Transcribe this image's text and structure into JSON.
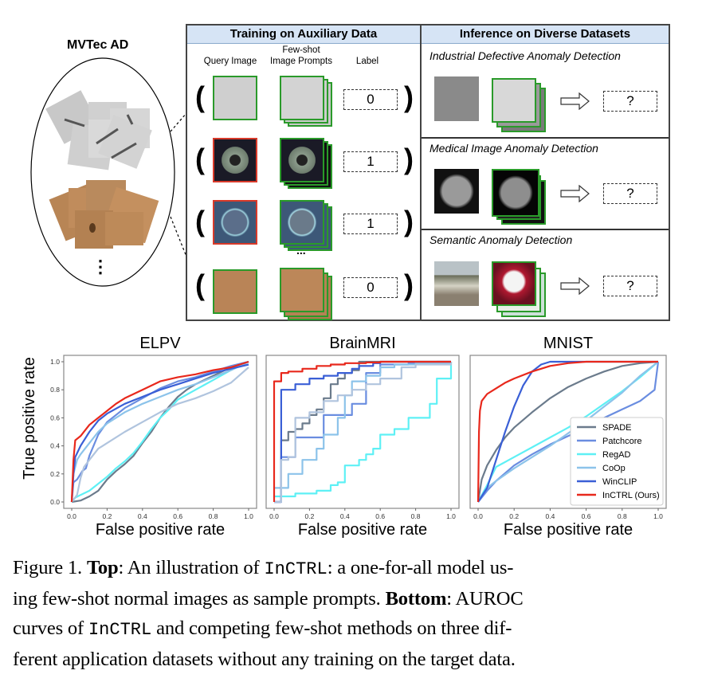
{
  "left_panel": {
    "title": "MVTec AD",
    "ellipsis": "⋮"
  },
  "training": {
    "header": "Training on Auxiliary Data",
    "col_query": "Query Image",
    "col_prompts_line1": "Few-shot",
    "col_prompts_line2": "Image Prompts",
    "col_label": "Label",
    "rows": [
      {
        "label": "0",
        "query_frame": "normal"
      },
      {
        "label": "1",
        "query_frame": "anomaly"
      },
      {
        "label": "1",
        "query_frame": "anomaly"
      },
      {
        "label": "0",
        "query_frame": "normal"
      }
    ],
    "dots": "...",
    "open_paren": "(",
    "close_paren": ")"
  },
  "inference": {
    "header": "Inference on Diverse Datasets",
    "sections": [
      {
        "title": "Industrial Defective Anomaly Detection",
        "output": "?"
      },
      {
        "title": "Medical Image Anomaly Detection",
        "output": "?"
      },
      {
        "title": "Semantic Anomaly Detection",
        "output": "?"
      }
    ]
  },
  "colors": {
    "normal_frame": "#2a9a2a",
    "anomaly_frame": "#d83a2a",
    "header_bg": "#d6e4f5"
  },
  "chart_data": [
    {
      "type": "line",
      "title": "ELPV",
      "xlabel": "False positive rate",
      "ylabel": "True positive rate",
      "xlim": [
        0,
        1
      ],
      "ylim": [
        0,
        1
      ],
      "xticks": [
        "0.0",
        "0.2",
        "0.4",
        "0.6",
        "0.8",
        "1.0"
      ],
      "yticks": [
        "0.0",
        "0.2",
        "0.4",
        "0.6",
        "0.8",
        "1.0"
      ],
      "series": [
        {
          "name": "SPADE",
          "color": "#6b7b8c",
          "x": [
            0,
            0.05,
            0.1,
            0.15,
            0.2,
            0.25,
            0.3,
            0.35,
            0.4,
            0.45,
            0.5,
            0.55,
            0.6,
            0.65,
            0.7,
            0.8,
            0.9,
            1.0
          ],
          "y": [
            0,
            0.01,
            0.04,
            0.08,
            0.16,
            0.22,
            0.27,
            0.33,
            0.42,
            0.5,
            0.6,
            0.68,
            0.75,
            0.8,
            0.84,
            0.9,
            0.96,
            1.0
          ]
        },
        {
          "name": "Patchcore",
          "color": "#6a8de0",
          "x": [
            0,
            0.01,
            0.03,
            0.06,
            0.08,
            0.1,
            0.15,
            0.2,
            0.3,
            0.4,
            0.5,
            0.6,
            0.7,
            0.8,
            0.9,
            1.0
          ],
          "y": [
            0,
            0.14,
            0.16,
            0.22,
            0.24,
            0.33,
            0.48,
            0.57,
            0.67,
            0.74,
            0.81,
            0.86,
            0.89,
            0.93,
            0.97,
            1.0
          ]
        },
        {
          "name": "RegAD",
          "color": "#5ef0f5",
          "x": [
            0,
            0.02,
            0.05,
            0.1,
            0.15,
            0.2,
            0.25,
            0.3,
            0.35,
            0.4,
            0.45,
            0.5,
            0.55,
            0.6,
            0.7,
            0.8,
            0.9,
            1.0
          ],
          "y": [
            0,
            0.03,
            0.05,
            0.08,
            0.13,
            0.18,
            0.24,
            0.29,
            0.35,
            0.43,
            0.52,
            0.6,
            0.66,
            0.73,
            0.8,
            0.87,
            0.94,
            1.0
          ]
        },
        {
          "name": "CoOp",
          "color": "#8cc3ea",
          "x": [
            0,
            0.01,
            0.03,
            0.05,
            0.1,
            0.15,
            0.2,
            0.3,
            0.4,
            0.5,
            0.6,
            0.7,
            0.8,
            0.9,
            1.0
          ],
          "y": [
            0,
            0.2,
            0.3,
            0.34,
            0.42,
            0.5,
            0.56,
            0.64,
            0.7,
            0.75,
            0.8,
            0.84,
            0.89,
            0.94,
            1.0
          ]
        },
        {
          "name": "WinCLIP",
          "color": "#3a5fd6",
          "x": [
            0,
            0.01,
            0.02,
            0.05,
            0.1,
            0.15,
            0.2,
            0.3,
            0.4,
            0.5,
            0.6,
            0.7,
            0.8,
            0.9,
            1.0
          ],
          "y": [
            0,
            0.2,
            0.32,
            0.4,
            0.5,
            0.58,
            0.63,
            0.7,
            0.75,
            0.8,
            0.84,
            0.88,
            0.92,
            0.95,
            0.98
          ]
        },
        {
          "name": "InCTRL (Ours)",
          "color": "#e8281c",
          "x": [
            0,
            0.01,
            0.02,
            0.05,
            0.1,
            0.15,
            0.2,
            0.25,
            0.3,
            0.4,
            0.5,
            0.6,
            0.7,
            0.8,
            0.9,
            1.0
          ],
          "y": [
            0,
            0.3,
            0.44,
            0.47,
            0.55,
            0.6,
            0.65,
            0.7,
            0.74,
            0.8,
            0.86,
            0.89,
            0.91,
            0.94,
            0.96,
            1.0
          ]
        },
        {
          "name": "Extra-lightblue",
          "color": "#b0c4de",
          "legend": false,
          "x": [
            0,
            0.03,
            0.05,
            0.07,
            0.1,
            0.15,
            0.2,
            0.3,
            0.4,
            0.5,
            0.6,
            0.7,
            0.8,
            0.9,
            1.0
          ],
          "y": [
            0,
            0.05,
            0.17,
            0.25,
            0.3,
            0.38,
            0.42,
            0.5,
            0.57,
            0.64,
            0.7,
            0.74,
            0.79,
            0.85,
            0.96
          ]
        }
      ]
    },
    {
      "type": "line",
      "title": "BrainMRI",
      "xlabel": "False positive rate",
      "xlim": [
        0,
        1
      ],
      "ylim": [
        0,
        1
      ],
      "xticks": [
        "0.0",
        "0.2",
        "0.4",
        "0.6",
        "0.8",
        "1.0"
      ],
      "step": true,
      "series": [
        {
          "name": "SPADE",
          "color": "#6b7b8c",
          "x": [
            0,
            0.04,
            0.04,
            0.08,
            0.12,
            0.16,
            0.2,
            0.24,
            0.28,
            0.32,
            0.36,
            0.4,
            0.44,
            0.48,
            0.48,
            1.0
          ],
          "y": [
            0,
            0.2,
            0.44,
            0.5,
            0.52,
            0.56,
            0.62,
            0.66,
            0.74,
            0.84,
            0.88,
            0.92,
            0.94,
            0.98,
            1.0,
            1.0
          ]
        },
        {
          "name": "Patchcore",
          "color": "#6a8de0",
          "x": [
            0,
            0.04,
            0.04,
            0.12,
            0.12,
            0.28,
            0.28,
            0.44,
            0.52,
            0.52,
            0.6,
            0.76,
            0.92,
            1.0
          ],
          "y": [
            0,
            0.16,
            0.32,
            0.46,
            0.46,
            0.48,
            0.62,
            0.7,
            0.7,
            0.92,
            0.98,
            0.99,
            1.0,
            1.0
          ]
        },
        {
          "name": "RegAD",
          "color": "#5ef0f5",
          "x": [
            0,
            0.04,
            0.12,
            0.24,
            0.32,
            0.36,
            0.4,
            0.48,
            0.52,
            0.56,
            0.6,
            0.68,
            0.76,
            0.88,
            0.92,
            1.0
          ],
          "y": [
            0.04,
            0.04,
            0.06,
            0.08,
            0.12,
            0.14,
            0.26,
            0.3,
            0.34,
            0.38,
            0.48,
            0.52,
            0.6,
            0.7,
            0.88,
            1.0
          ]
        },
        {
          "name": "CoOp",
          "color": "#8cc3ea",
          "x": [
            0,
            0.08,
            0.08,
            0.16,
            0.24,
            0.28,
            0.36,
            0.4,
            0.44,
            0.52,
            0.6,
            0.68,
            0.8,
            1.0
          ],
          "y": [
            0.1,
            0.1,
            0.2,
            0.3,
            0.38,
            0.48,
            0.6,
            0.76,
            0.86,
            0.9,
            0.96,
            0.98,
            0.99,
            1.0
          ]
        },
        {
          "name": "WinCLIP",
          "color": "#3a5fd6",
          "x": [
            0,
            0.04,
            0.04,
            0.12,
            0.2,
            0.28,
            0.36,
            0.44,
            0.48,
            0.56,
            0.6,
            1.0
          ],
          "y": [
            0,
            0.56,
            0.8,
            0.84,
            0.88,
            0.9,
            0.92,
            0.95,
            0.97,
            0.99,
            1.0,
            1.0
          ]
        },
        {
          "name": "InCTRL (Ours)",
          "color": "#e8281c",
          "x": [
            0,
            0.0,
            0.04,
            0.04,
            0.08,
            0.16,
            0.24,
            0.32,
            0.4,
            0.52,
            0.6,
            0.72,
            1.0
          ],
          "y": [
            0,
            0.86,
            0.88,
            0.92,
            0.93,
            0.95,
            0.97,
            0.98,
            0.99,
            0.995,
            1.0,
            1.0,
            1.0
          ]
        },
        {
          "name": "Extra-lightblue",
          "color": "#b0c4de",
          "legend": false,
          "x": [
            0,
            0.04,
            0.08,
            0.12,
            0.12,
            0.2,
            0.28,
            0.36,
            0.44,
            0.52,
            0.6,
            0.72,
            0.8,
            1.0
          ],
          "y": [
            0,
            0.3,
            0.32,
            0.44,
            0.6,
            0.64,
            0.72,
            0.76,
            0.8,
            0.84,
            0.88,
            0.96,
            0.98,
            1.0
          ]
        }
      ]
    },
    {
      "type": "line",
      "title": "MNIST",
      "xlabel": "False positive rate",
      "xlim": [
        0,
        1
      ],
      "ylim": [
        0,
        1
      ],
      "xticks": [
        "0.0",
        "0.2",
        "0.4",
        "0.6",
        "0.8",
        "1.0"
      ],
      "legend_position": "bottom-right",
      "series": [
        {
          "name": "SPADE",
          "color": "#6b7b8c",
          "x": [
            0,
            0.02,
            0.05,
            0.1,
            0.15,
            0.2,
            0.3,
            0.4,
            0.5,
            0.6,
            0.7,
            0.8,
            0.9,
            1.0
          ],
          "y": [
            0,
            0.16,
            0.26,
            0.37,
            0.46,
            0.53,
            0.64,
            0.74,
            0.82,
            0.88,
            0.93,
            0.97,
            0.99,
            1.0
          ]
        },
        {
          "name": "Patchcore",
          "color": "#6a8de0",
          "x": [
            0,
            0.05,
            0.1,
            0.2,
            0.3,
            0.4,
            0.5,
            0.6,
            0.7,
            0.8,
            0.9,
            0.98,
            1.0
          ],
          "y": [
            0,
            0.08,
            0.15,
            0.26,
            0.34,
            0.41,
            0.47,
            0.53,
            0.6,
            0.66,
            0.72,
            0.8,
            1.0
          ]
        },
        {
          "name": "RegAD",
          "color": "#5ef0f5",
          "x": [
            0,
            0.05,
            0.1,
            0.2,
            0.3,
            0.4,
            0.5,
            0.6,
            0.7,
            0.8,
            0.9,
            1.0
          ],
          "y": [
            0,
            0.12,
            0.25,
            0.32,
            0.39,
            0.46,
            0.53,
            0.61,
            0.7,
            0.79,
            0.89,
            1.0
          ]
        },
        {
          "name": "CoOp",
          "color": "#8cc3ea",
          "x": [
            0,
            0.05,
            0.1,
            0.2,
            0.3,
            0.4,
            0.5,
            0.6,
            0.7,
            0.8,
            0.9,
            1.0
          ],
          "y": [
            0,
            0.1,
            0.15,
            0.24,
            0.32,
            0.4,
            0.49,
            0.58,
            0.68,
            0.78,
            0.9,
            1.0
          ]
        },
        {
          "name": "WinCLIP",
          "color": "#3a5fd6",
          "x": [
            0,
            0.05,
            0.1,
            0.15,
            0.2,
            0.25,
            0.3,
            0.35,
            0.4,
            0.5,
            0.6,
            1.0
          ],
          "y": [
            0,
            0.1,
            0.3,
            0.5,
            0.68,
            0.83,
            0.93,
            0.98,
            1.0,
            1.0,
            1.0,
            1.0
          ]
        },
        {
          "name": "InCTRL (Ours)",
          "color": "#e8281c",
          "x": [
            0,
            0.005,
            0.01,
            0.02,
            0.05,
            0.1,
            0.15,
            0.2,
            0.3,
            0.4,
            0.5,
            0.6,
            0.8,
            1.0
          ],
          "y": [
            0,
            0.5,
            0.65,
            0.72,
            0.77,
            0.81,
            0.85,
            0.88,
            0.93,
            0.97,
            0.99,
            1.0,
            1.0,
            1.0
          ]
        }
      ]
    }
  ],
  "caption": {
    "line1_a": "Figure 1. ",
    "line1_b": "Top",
    "line1_c": ": An illustration of ",
    "line1_d": "InCTRL",
    "line1_e": ": a one-for-all model us-",
    "line2_a": "ing few-shot normal images as sample prompts. ",
    "line2_b": "Bottom",
    "line2_c": ": AUROC",
    "line3_a": "curves of ",
    "line3_b": "InCTRL",
    "line3_c": " and competing few-shot methods on three dif-",
    "line4": "ferent application datasets without any training on the target data."
  }
}
